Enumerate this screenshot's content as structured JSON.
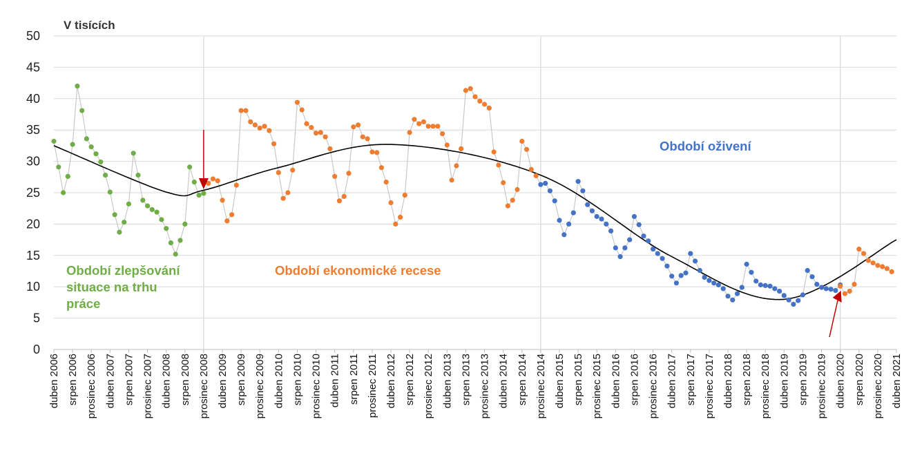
{
  "chart_data": {
    "type": "line",
    "title": "",
    "unit_label": "V tisících",
    "xlabel": "",
    "ylabel": "",
    "ylim": [
      0,
      50
    ],
    "yticks": [
      "0",
      "5",
      "10",
      "15",
      "20",
      "25",
      "30",
      "35",
      "40",
      "45",
      "50"
    ],
    "grid": "horizontal",
    "x_tick_labels": [
      "duben 2006",
      "srpen 2006",
      "prosinec 2006",
      "duben 2007",
      "srpen 2007",
      "prosinec 2007",
      "duben 2008",
      "srpen 2008",
      "prosinec 2008",
      "duben 2009",
      "srpen 2009",
      "prosinec 2009",
      "duben 2010",
      "srpen 2010",
      "prosinec 2010",
      "duben 2011",
      "srpen 2011",
      "prosinec 2011",
      "duben 2012",
      "srpen 2012",
      "prosinec 2012",
      "duben 2013",
      "srpen 2013",
      "prosinec 2013",
      "duben 2014",
      "srpen 2014",
      "prosinec 2014",
      "duben 2015",
      "srpen 2015",
      "prosinec 2015",
      "duben 2016",
      "srpen 2016",
      "prosinec 2016",
      "duben 2017",
      "srpen 2017",
      "prosinec 2017",
      "duben 2018",
      "srpen 2018",
      "prosinec 2018",
      "duben 2019",
      "srpen 2019",
      "prosinec 2019",
      "duben 2020",
      "srpen 2020",
      "prosinec 2020",
      "duben 2021"
    ],
    "vertical_markers": [
      "prosinec 2008",
      "prosinec 2014",
      "duben 2020"
    ],
    "colors": {
      "improvement": "#70ad47",
      "recession": "#ed7d31",
      "recovery": "#4472c4",
      "connector": "#c8c8c8",
      "trend": "#000000",
      "arrow": "#c00000",
      "grid": "#d9d9d9",
      "marker_line": "#d9d9d9"
    },
    "series": [
      {
        "phase": "improvement",
        "start": "duben 2006",
        "values": [
          33.2,
          29.1,
          25.0,
          27.6,
          32.7,
          42.0,
          38.1,
          33.6,
          32.3,
          31.2,
          29.9,
          27.8,
          25.1,
          21.5,
          18.7,
          20.3,
          23.2,
          31.3,
          27.8,
          23.8,
          22.9,
          22.3,
          21.9,
          20.7,
          19.3,
          17.0,
          15.2,
          17.4,
          20.0,
          29.1,
          26.7,
          24.6,
          24.9
        ]
      },
      {
        "phase": "recession",
        "start": "leden 2009",
        "values": [
          26.5,
          27.2,
          26.9,
          23.8,
          20.5,
          21.5,
          26.2,
          38.1,
          38.1,
          36.3,
          35.8,
          35.3,
          35.6,
          34.9,
          32.8,
          28.2,
          24.1,
          25.0,
          28.6,
          39.4,
          38.2,
          36.0,
          35.4,
          34.5,
          34.6,
          33.9,
          32.0,
          27.6,
          23.7,
          24.4,
          28.1,
          35.5,
          35.8,
          33.9,
          33.6,
          31.5,
          31.4,
          29.0,
          26.7,
          23.4,
          20.0,
          21.1,
          24.6,
          34.6,
          36.7,
          36.0,
          36.3,
          35.6,
          35.6,
          35.6,
          34.4,
          32.6,
          27.0,
          29.3,
          32.0,
          41.3,
          41.6,
          40.3,
          39.6,
          39.1,
          38.5,
          31.5,
          29.4,
          26.6,
          22.9,
          23.8,
          25.5,
          33.2,
          31.9,
          28.7,
          27.7
        ]
      },
      {
        "phase": "recovery",
        "start": "prosinec 2014",
        "values": [
          26.3,
          26.5,
          25.3,
          23.7,
          20.6,
          18.3,
          20.0,
          21.8,
          26.8,
          25.3,
          23.1,
          22.1,
          21.2,
          20.8,
          20.0,
          18.9,
          16.2,
          14.8,
          16.2,
          17.5,
          21.2,
          19.9,
          18.1,
          17.3,
          16.0,
          15.3,
          14.5,
          13.3,
          11.7,
          10.6,
          11.8,
          12.2,
          15.3,
          14.1,
          12.6,
          11.5,
          11.0,
          10.6,
          10.3,
          9.7,
          8.5,
          7.9,
          8.9,
          9.9,
          13.6,
          12.3,
          10.9,
          10.3,
          10.2,
          10.1,
          9.7,
          9.3,
          8.6,
          7.9,
          7.2,
          7.8,
          8.7,
          12.6,
          11.6,
          10.4,
          9.9,
          9.7,
          9.6,
          9.4,
          10.3
        ]
      },
      {
        "phase": "recession",
        "start": "duben 2020",
        "values": [
          10.1,
          8.9,
          9.3,
          10.4,
          16.0,
          15.3,
          14.2,
          13.8,
          13.4,
          13.2,
          12.9,
          12.4
        ]
      }
    ],
    "trend_line": {
      "type": "polynomial",
      "approx_points": [
        {
          "x": "duben 2006",
          "y": 32.5
        },
        {
          "x": "duben 2008",
          "y": 25.1
        },
        {
          "x": "prosinec 2008",
          "y": 25.4
        },
        {
          "x": "duben 2010",
          "y": 29.0
        },
        {
          "x": "duben 2012",
          "y": 32.7
        },
        {
          "x": "prosinec 2014",
          "y": 27.8
        },
        {
          "x": "duben 2017",
          "y": 14.8
        },
        {
          "x": "duben 2019",
          "y": 8.0
        },
        {
          "x": "duben 2021",
          "y": 17.5
        }
      ]
    },
    "annotations": [
      {
        "phase": "improvement",
        "lines": [
          "Období zlepšování",
          "situace na trhu",
          "práce"
        ]
      },
      {
        "phase": "recession",
        "lines": [
          "Období ekonomické recese"
        ]
      },
      {
        "phase": "recovery",
        "lines": [
          "Období oživení"
        ]
      }
    ]
  }
}
